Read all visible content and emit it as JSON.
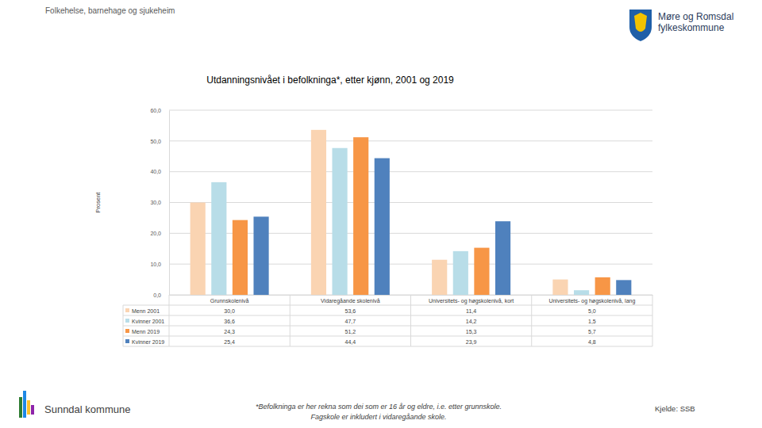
{
  "chart_data": {
    "type": "bar",
    "title": "Utdanningsnivået i befolkninga*, etter kjønn, 2001 og 2019",
    "y_label": "Prosent",
    "categories": [
      "Grunnskolenivå",
      "Vidaregåande skolenivå",
      "Universitets- og høgskolenivå, kort",
      "Universitets- og høgskolenivå, lang"
    ],
    "series": [
      {
        "name": "Menn 2001",
        "color": "#fad4b2",
        "values": [
          30.0,
          53.6,
          11.4,
          5.0
        ],
        "value_labels": [
          "30,0",
          "53,6",
          "11,4",
          "5,0"
        ]
      },
      {
        "name": "Kvinner 2001",
        "color": "#b8dde8",
        "values": [
          36.6,
          47.7,
          14.2,
          1.5
        ],
        "value_labels": [
          "36,6",
          "47,7",
          "14,2",
          "1,5"
        ]
      },
      {
        "name": "Menn 2019",
        "color": "#f79646",
        "values": [
          24.3,
          51.2,
          15.3,
          5.7
        ],
        "value_labels": [
          "24,3",
          "51,2",
          "15,3",
          "5,7"
        ]
      },
      {
        "name": "Kvinner 2019",
        "color": "#4f81bd",
        "values": [
          25.4,
          44.4,
          23.9,
          4.8
        ],
        "value_labels": [
          "25,4",
          "44,4",
          "23,9",
          "4,8"
        ]
      }
    ],
    "ylim": [
      0,
      60
    ],
    "yticks": [
      {
        "value": 0,
        "label": "0,0"
      },
      {
        "value": 10,
        "label": "10,0"
      },
      {
        "value": 20,
        "label": "20,0"
      },
      {
        "value": 30,
        "label": "30,0"
      },
      {
        "value": 40,
        "label": "40,0"
      },
      {
        "value": 50,
        "label": "50,0"
      },
      {
        "value": 60,
        "label": "60,0"
      }
    ],
    "grid": true
  },
  "page": {
    "header": "Folkehelse, barnehage og sjukeheim",
    "logo_text": [
      "Møre og Romsdal",
      "fylkeskommune"
    ],
    "municipality": "Sunndal kommune",
    "footnote": [
      "*Befolkninga er her rekna som dei som er 16 år og eldre, i.e. etter grunnskole.",
      "Fagskole er inkludert i vidaregåande skole."
    ],
    "source": "Kjelde: SSB"
  }
}
